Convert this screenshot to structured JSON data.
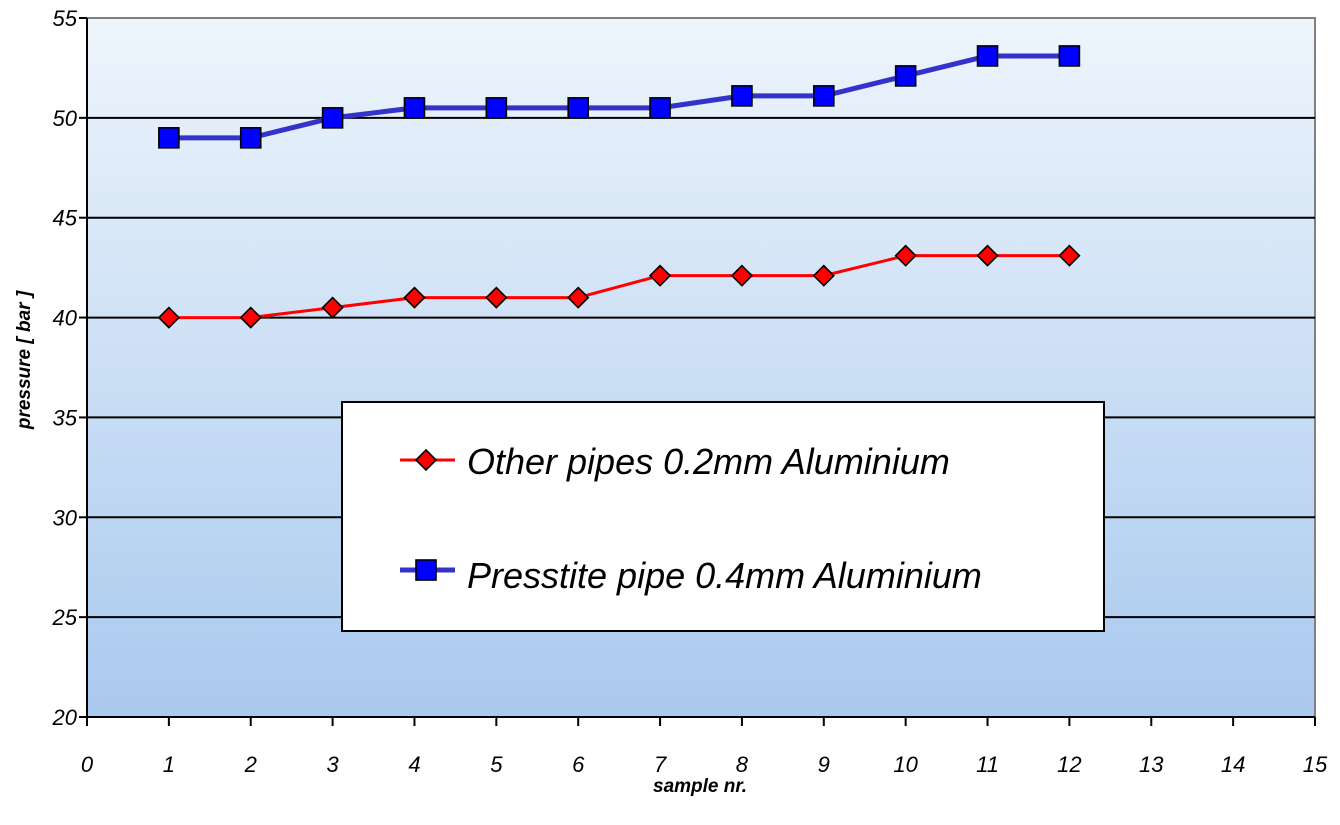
{
  "chart_data": {
    "type": "line",
    "xlabel": "sample nr.",
    "ylabel": "pressure [ bar ]",
    "xlim": [
      0,
      15
    ],
    "ylim": [
      20,
      55
    ],
    "x_ticks": [
      "0",
      "1",
      "2",
      "3",
      "4",
      "5",
      "6",
      "7",
      "8",
      "9",
      "10",
      "11",
      "12",
      "13",
      "14",
      "15"
    ],
    "y_ticks": [
      "20",
      "25",
      "30",
      "35",
      "40",
      "45",
      "50",
      "55"
    ],
    "grid": "horizontal",
    "legend_position": "center",
    "background": "gradient light-to-medium blue",
    "series": [
      {
        "name": "Other pipes 0.2mm Aluminium",
        "marker": "diamond",
        "color": "#ff0000",
        "line_color": "#ff0000",
        "x": [
          1,
          2,
          3,
          4,
          5,
          6,
          7,
          8,
          9,
          10,
          11,
          12
        ],
        "values": [
          40,
          40,
          40.5,
          41,
          41,
          41,
          42.1,
          42.1,
          42.1,
          43.1,
          43.1,
          43.1
        ]
      },
      {
        "name": "Presstite pipe 0.4mm Aluminium",
        "marker": "square",
        "color": "#0000ff",
        "line_color": "#3333cc",
        "x": [
          1,
          2,
          3,
          4,
          5,
          6,
          7,
          8,
          9,
          10,
          11,
          12
        ],
        "values": [
          49,
          49,
          50,
          50.5,
          50.5,
          50.5,
          50.5,
          51.1,
          51.1,
          52.1,
          53.1,
          53.1
        ]
      }
    ]
  }
}
